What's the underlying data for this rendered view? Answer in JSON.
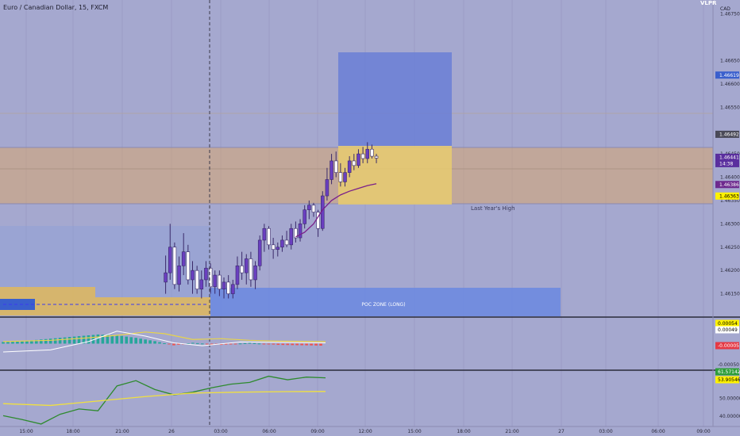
{
  "header": {
    "title": "Euro / Canadian Dollar, 15, FXCM",
    "currency": "CAD",
    "corner_text": "VLPR"
  },
  "price_axis": {
    "ticks": [
      "1.46750",
      "1.46650",
      "1.46600",
      "1.46550",
      "1.46450",
      "1.46400",
      "1.46350",
      "1.46300",
      "1.46250",
      "1.46200",
      "1.46150"
    ],
    "badges": [
      {
        "text": "1.46619",
        "bg": "#3a5fcd",
        "fg": "#ffffff"
      },
      {
        "text": "1.46492",
        "bg": "#4a4a58",
        "fg": "#ffffff"
      },
      {
        "text": "1.46441",
        "bg": "#5a2f9e",
        "fg": "#ffffff"
      },
      {
        "text": "14:38",
        "bg": "#5a2f9e",
        "fg": "#ffffff"
      },
      {
        "text": "1.46386",
        "bg": "#6e2a8e",
        "fg": "#ffffff"
      },
      {
        "text": "1.46363",
        "bg": "#fff200",
        "fg": "#000000"
      }
    ]
  },
  "macd_axis": {
    "ticks": [
      "-0.00050"
    ],
    "badges": [
      {
        "text": "0.00054",
        "bg": "#fff200",
        "fg": "#000000"
      },
      {
        "text": "0.00049",
        "bg": "#ffffff",
        "fg": "#000000"
      },
      {
        "text": "-0.00005",
        "bg": "#e53945",
        "fg": "#ffffff"
      }
    ]
  },
  "rsi_axis": {
    "ticks": [
      "50.00000",
      "40.00000"
    ],
    "badges": [
      {
        "text": "61.57142",
        "bg": "#2e9e3a",
        "fg": "#ffffff"
      },
      {
        "text": "53.90546",
        "bg": "#fff200",
        "fg": "#000000"
      }
    ]
  },
  "time_axis": {
    "labels": [
      "15:00",
      "18:00",
      "21:00",
      "26",
      "03:00",
      "06:00",
      "09:00",
      "12:00",
      "15:00",
      "18:00",
      "21:00",
      "27",
      "03:00",
      "06:00",
      "09:00"
    ]
  },
  "annotations": {
    "last_years_high": "Last Year's High",
    "poc_zone": "POC ZONE (LONG)"
  },
  "colors": {
    "background": "#a5a8cf",
    "bull_candle": "#6a3fc0",
    "bear_candle": "#ffffff",
    "zone_orange": "#d8a66f",
    "target_blue": "#6a7fd6",
    "yellow_box": "#e0c070",
    "ma_line": "#7a1f8a"
  },
  "chart_data": [
    {
      "type": "candlestick",
      "title": "Euro / Canadian Dollar, 15, FXCM",
      "ylim": [
        1.461,
        1.4678
      ],
      "x_range": [
        0,
        159
      ],
      "candles": [
        {
          "x": 21,
          "o": 1.46175,
          "h": 1.46232,
          "l": 1.4615,
          "c": 1.46195
        },
        {
          "x": 22,
          "o": 1.46195,
          "h": 1.463,
          "l": 1.4618,
          "c": 1.4625
        },
        {
          "x": 23,
          "o": 1.4625,
          "h": 1.4626,
          "l": 1.4616,
          "c": 1.4617
        },
        {
          "x": 24,
          "o": 1.4617,
          "h": 1.4623,
          "l": 1.46155,
          "c": 1.4621
        },
        {
          "x": 25,
          "o": 1.4621,
          "h": 1.4628,
          "l": 1.4619,
          "c": 1.4624
        },
        {
          "x": 26,
          "o": 1.4624,
          "h": 1.46255,
          "l": 1.4617,
          "c": 1.4618
        },
        {
          "x": 27,
          "o": 1.4618,
          "h": 1.4622,
          "l": 1.4615,
          "c": 1.462
        },
        {
          "x": 28,
          "o": 1.462,
          "h": 1.4621,
          "l": 1.4615,
          "c": 1.4616
        },
        {
          "x": 29,
          "o": 1.4616,
          "h": 1.462,
          "l": 1.4614,
          "c": 1.4618
        },
        {
          "x": 30,
          "o": 1.4618,
          "h": 1.4622,
          "l": 1.46165,
          "c": 1.46205
        },
        {
          "x": 31,
          "o": 1.46205,
          "h": 1.46215,
          "l": 1.4615,
          "c": 1.46165
        },
        {
          "x": 32,
          "o": 1.46165,
          "h": 1.462,
          "l": 1.4615,
          "c": 1.4619
        },
        {
          "x": 33,
          "o": 1.4619,
          "h": 1.462,
          "l": 1.46145,
          "c": 1.4616
        },
        {
          "x": 34,
          "o": 1.4616,
          "h": 1.46185,
          "l": 1.4614,
          "c": 1.46175
        },
        {
          "x": 35,
          "o": 1.46175,
          "h": 1.4619,
          "l": 1.4614,
          "c": 1.4615
        },
        {
          "x": 36,
          "o": 1.4615,
          "h": 1.4618,
          "l": 1.4614,
          "c": 1.4617
        },
        {
          "x": 37,
          "o": 1.4617,
          "h": 1.4623,
          "l": 1.4616,
          "c": 1.4621
        },
        {
          "x": 38,
          "o": 1.4621,
          "h": 1.4624,
          "l": 1.4618,
          "c": 1.46195
        },
        {
          "x": 39,
          "o": 1.46195,
          "h": 1.46235,
          "l": 1.4617,
          "c": 1.46225
        },
        {
          "x": 40,
          "o": 1.46225,
          "h": 1.4624,
          "l": 1.46165,
          "c": 1.4618
        },
        {
          "x": 41,
          "o": 1.4618,
          "h": 1.4622,
          "l": 1.4616,
          "c": 1.4621
        },
        {
          "x": 42,
          "o": 1.4621,
          "h": 1.46275,
          "l": 1.462,
          "c": 1.46265
        },
        {
          "x": 43,
          "o": 1.46265,
          "h": 1.463,
          "l": 1.4624,
          "c": 1.4629
        },
        {
          "x": 44,
          "o": 1.4629,
          "h": 1.46295,
          "l": 1.46245,
          "c": 1.46255
        },
        {
          "x": 45,
          "o": 1.46255,
          "h": 1.4627,
          "l": 1.46225,
          "c": 1.46245
        },
        {
          "x": 46,
          "o": 1.46245,
          "h": 1.4626,
          "l": 1.4623,
          "c": 1.4625
        },
        {
          "x": 47,
          "o": 1.4625,
          "h": 1.46275,
          "l": 1.4624,
          "c": 1.46265
        },
        {
          "x": 48,
          "o": 1.46265,
          "h": 1.46285,
          "l": 1.4625,
          "c": 1.46255
        },
        {
          "x": 49,
          "o": 1.46255,
          "h": 1.463,
          "l": 1.46245,
          "c": 1.4629
        },
        {
          "x": 50,
          "o": 1.4629,
          "h": 1.46305,
          "l": 1.4626,
          "c": 1.4627
        },
        {
          "x": 51,
          "o": 1.4627,
          "h": 1.4631,
          "l": 1.46262,
          "c": 1.463
        },
        {
          "x": 52,
          "o": 1.463,
          "h": 1.4634,
          "l": 1.4629,
          "c": 1.4633
        },
        {
          "x": 53,
          "o": 1.4633,
          "h": 1.4635,
          "l": 1.4631,
          "c": 1.4634
        },
        {
          "x": 54,
          "o": 1.4634,
          "h": 1.46345,
          "l": 1.46315,
          "c": 1.46325
        },
        {
          "x": 55,
          "o": 1.46325,
          "h": 1.4633,
          "l": 1.46272,
          "c": 1.4629
        },
        {
          "x": 56,
          "o": 1.4629,
          "h": 1.4637,
          "l": 1.46285,
          "c": 1.4636
        },
        {
          "x": 57,
          "o": 1.4636,
          "h": 1.4642,
          "l": 1.4635,
          "c": 1.46395
        },
        {
          "x": 58,
          "o": 1.46395,
          "h": 1.4645,
          "l": 1.46385,
          "c": 1.46435
        },
        {
          "x": 59,
          "o": 1.46435,
          "h": 1.46455,
          "l": 1.464,
          "c": 1.4641
        },
        {
          "x": 60,
          "o": 1.4641,
          "h": 1.4643,
          "l": 1.4638,
          "c": 1.4639
        },
        {
          "x": 61,
          "o": 1.4639,
          "h": 1.4642,
          "l": 1.4638,
          "c": 1.4641
        },
        {
          "x": 62,
          "o": 1.4641,
          "h": 1.46445,
          "l": 1.464,
          "c": 1.46435
        },
        {
          "x": 63,
          "o": 1.46435,
          "h": 1.4645,
          "l": 1.46415,
          "c": 1.46425
        },
        {
          "x": 64,
          "o": 1.46425,
          "h": 1.4646,
          "l": 1.4642,
          "c": 1.4645
        },
        {
          "x": 65,
          "o": 1.4645,
          "h": 1.46465,
          "l": 1.4643,
          "c": 1.4644
        },
        {
          "x": 66,
          "o": 1.4644,
          "h": 1.46475,
          "l": 1.4643,
          "c": 1.4646
        },
        {
          "x": 67,
          "o": 1.4646,
          "h": 1.4647,
          "l": 1.4644,
          "c": 1.46445
        },
        {
          "x": 68,
          "o": 1.46445,
          "h": 1.4645,
          "l": 1.4643,
          "c": 1.46441
        }
      ],
      "moving_average": [
        [
          50,
          1.46272
        ],
        [
          52,
          1.46282
        ],
        [
          54,
          1.463
        ],
        [
          56,
          1.4633
        ],
        [
          58,
          1.4635
        ],
        [
          60,
          1.46362
        ],
        [
          62,
          1.4637
        ],
        [
          64,
          1.46376
        ],
        [
          66,
          1.46382
        ],
        [
          68,
          1.46386
        ]
      ],
      "horizontal_levels": [
        1.46492,
        1.46363,
        1.46619
      ],
      "zones": [
        {
          "name": "last_years_high_zone",
          "from": 1.46363,
          "to": 1.46492
        },
        {
          "name": "target_box",
          "from": 1.46492,
          "to": 1.467
        },
        {
          "name": "entry_box",
          "from": 1.46363,
          "to": 1.46492
        },
        {
          "name": "poc_zone_long",
          "from": 1.4611,
          "to": 1.4618
        }
      ]
    },
    {
      "type": "line",
      "series": [
        {
          "values": [
            [
              0,
              5e-05
            ],
            [
              10,
              8e-05
            ],
            [
              18,
              0.00014
            ],
            [
              24,
              0.0002
            ],
            [
              30,
              0.00028
            ],
            [
              34,
              0.00024
            ],
            [
              40,
              0.0001
            ],
            [
              46,
              0.00012
            ],
            [
              52,
              8e-05
            ],
            [
              58,
              6e-05
            ],
            [
              68,
              5e-05
            ]
          ]
        },
        {
          "values": [
            [
              0,
              -0.0002
            ],
            [
              10,
              -0.00015
            ],
            [
              18,
              5e-05
            ],
            [
              24,
              0.0003
            ],
            [
              30,
              0.00018
            ],
            [
              36,
              2e-05
            ],
            [
              42,
              -5e-05
            ],
            [
              50,
              4e-05
            ],
            [
              58,
              3e-05
            ],
            [
              68,
              2e-05
            ]
          ]
        }
      ],
      "histogram": [
        [
          0,
          4e-05
        ],
        [
          4,
          6e-05
        ],
        [
          10,
          0.00012
        ],
        [
          16,
          0.00018
        ],
        [
          20,
          0.00022
        ],
        [
          24,
          0.0002
        ],
        [
          28,
          0.00014
        ],
        [
          32,
          6e-05
        ],
        [
          36,
          -4e-05
        ],
        [
          40,
          2e-05
        ],
        [
          46,
          -3e-05
        ],
        [
          52,
          2e-05
        ],
        [
          58,
          -3e-05
        ],
        [
          64,
          -4e-05
        ],
        [
          68,
          -5e-05
        ]
      ],
      "ylim": [
        -0.0006,
        0.0006
      ]
    },
    {
      "type": "line",
      "series": [
        {
          "values": [
            [
              0,
              40.2
            ],
            [
              4,
              38.0
            ],
            [
              8,
              35.5
            ],
            [
              12,
              41.0
            ],
            [
              16,
              44.0
            ],
            [
              20,
              43.0
            ],
            [
              24,
              57.0
            ],
            [
              28,
              60.0
            ],
            [
              32,
              55.0
            ],
            [
              36,
              52.0
            ],
            [
              40,
              53.5
            ],
            [
              44,
              56.0
            ],
            [
              48,
              58.0
            ],
            [
              52,
              59.0
            ],
            [
              56,
              62.5
            ],
            [
              60,
              60.5
            ],
            [
              64,
              62.0
            ],
            [
              68,
              61.6
            ]
          ]
        },
        {
          "values": [
            [
              0,
              47.0
            ],
            [
              10,
              46.0
            ],
            [
              20,
              48.5
            ],
            [
              30,
              51.0
            ],
            [
              40,
              53.0
            ],
            [
              50,
              53.5
            ],
            [
              60,
              53.8
            ],
            [
              68,
              53.9
            ]
          ]
        }
      ],
      "ylim": [
        35,
        65
      ]
    }
  ]
}
